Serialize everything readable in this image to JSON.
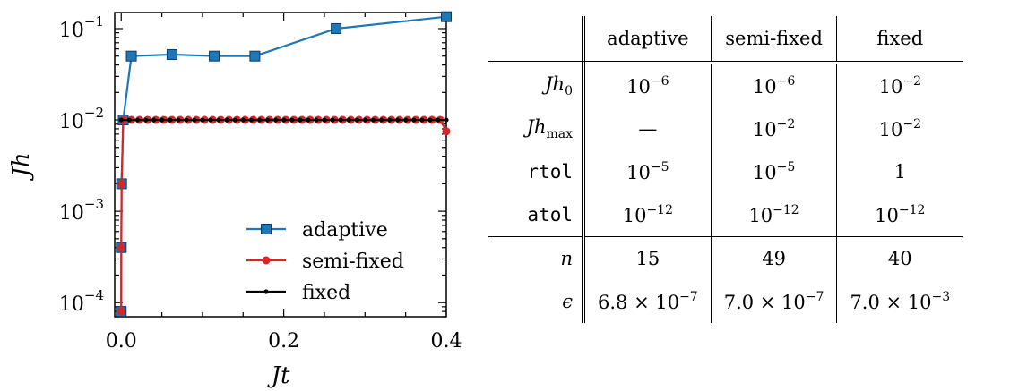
{
  "chart_data": {
    "type": "line",
    "xlabel": "Jt",
    "ylabel": "Jh",
    "xlim": [
      -0.008,
      0.4
    ],
    "ylim": [
      7e-05,
      0.15
    ],
    "yscale": "log",
    "xticks": [
      0.0,
      0.2,
      0.4
    ],
    "xtick_labels": [
      "0.0",
      "0.2",
      "0.4"
    ],
    "yticks": [
      0.0001,
      0.001,
      0.01,
      0.1
    ],
    "ytick_labels": [
      {
        "base": "10",
        "exp": "−4"
      },
      {
        "base": "10",
        "exp": "−3"
      },
      {
        "base": "10",
        "exp": "−2"
      },
      {
        "base": "10",
        "exp": "−1"
      }
    ],
    "legend_position": "lower-right",
    "series": [
      {
        "name": "adaptive",
        "color": "#1f77b4",
        "marker": "square",
        "x": [
          0.0,
          8e-05,
          0.00048,
          0.00248,
          0.01248,
          0.06248,
          0.11448,
          0.16448,
          0.26448,
          0.4
        ],
        "y": [
          8e-05,
          0.0004,
          0.002,
          0.01,
          0.05,
          0.052,
          0.05,
          0.05,
          0.1,
          0.135
        ]
      },
      {
        "name": "semi-fixed",
        "color": "#d62728",
        "marker": "circle",
        "x": [
          0.0,
          8e-05,
          0.00048,
          0.00248,
          0.01248,
          0.02248,
          0.03248,
          0.04248,
          0.05248,
          0.06248,
          0.07248,
          0.08248,
          0.09248,
          0.10248,
          0.11248,
          0.12248,
          0.13248,
          0.14248,
          0.15248,
          0.16248,
          0.17248,
          0.18248,
          0.19248,
          0.20248,
          0.21248,
          0.22248,
          0.23248,
          0.24248,
          0.25248,
          0.26248,
          0.27248,
          0.28248,
          0.29248,
          0.30248,
          0.31248,
          0.32248,
          0.33248,
          0.34248,
          0.35248,
          0.36248,
          0.37248,
          0.38248,
          0.39248,
          0.4
        ],
        "y": [
          8e-05,
          0.0004,
          0.002,
          0.01,
          0.01,
          0.01,
          0.01,
          0.01,
          0.01,
          0.01,
          0.01,
          0.01,
          0.01,
          0.01,
          0.01,
          0.01,
          0.01,
          0.01,
          0.01,
          0.01,
          0.01,
          0.01,
          0.01,
          0.01,
          0.01,
          0.01,
          0.01,
          0.01,
          0.01,
          0.01,
          0.01,
          0.01,
          0.01,
          0.01,
          0.01,
          0.01,
          0.01,
          0.01,
          0.01,
          0.01,
          0.01,
          0.01,
          0.01,
          0.0075
        ]
      },
      {
        "name": "fixed",
        "color": "#000000",
        "marker": "dot",
        "x": [
          0.0,
          0.01,
          0.02,
          0.03,
          0.04,
          0.05,
          0.06,
          0.07,
          0.08,
          0.09,
          0.1,
          0.11,
          0.12,
          0.13,
          0.14,
          0.15,
          0.16,
          0.17,
          0.18,
          0.19,
          0.2,
          0.21,
          0.22,
          0.23,
          0.24,
          0.25,
          0.26,
          0.27,
          0.28,
          0.29,
          0.3,
          0.31,
          0.32,
          0.33,
          0.34,
          0.35,
          0.36,
          0.37,
          0.38,
          0.39,
          0.4
        ],
        "y": [
          0.01,
          0.01,
          0.01,
          0.01,
          0.01,
          0.01,
          0.01,
          0.01,
          0.01,
          0.01,
          0.01,
          0.01,
          0.01,
          0.01,
          0.01,
          0.01,
          0.01,
          0.01,
          0.01,
          0.01,
          0.01,
          0.01,
          0.01,
          0.01,
          0.01,
          0.01,
          0.01,
          0.01,
          0.01,
          0.01,
          0.01,
          0.01,
          0.01,
          0.01,
          0.01,
          0.01,
          0.01,
          0.01,
          0.01,
          0.01,
          0.01
        ]
      }
    ]
  },
  "table": {
    "headers": [
      "adaptive",
      "semi-fixed",
      "fixed"
    ],
    "rows": [
      {
        "label": "Jh",
        "label_sub": "0",
        "cells": [
          {
            "base": "10",
            "exp": "−6"
          },
          {
            "base": "10",
            "exp": "−6"
          },
          {
            "base": "10",
            "exp": "−2"
          }
        ]
      },
      {
        "label": "Jh",
        "label_sub": "max",
        "cells": [
          {
            "text": "—"
          },
          {
            "base": "10",
            "exp": "−2"
          },
          {
            "base": "10",
            "exp": "−2"
          }
        ]
      },
      {
        "label": "rtol",
        "cells": [
          {
            "base": "10",
            "exp": "−5"
          },
          {
            "base": "10",
            "exp": "−5"
          },
          {
            "text": "1"
          }
        ]
      },
      {
        "label": "atol",
        "cells": [
          {
            "base": "10",
            "exp": "−12"
          },
          {
            "base": "10",
            "exp": "−12"
          },
          {
            "base": "10",
            "exp": "−12"
          }
        ]
      },
      {
        "label": "n",
        "cells": [
          {
            "text": "15"
          },
          {
            "text": "49"
          },
          {
            "text": "40"
          }
        ]
      },
      {
        "label": "ϵ",
        "cells": [
          {
            "base": "6.8 × 10",
            "exp": "−7"
          },
          {
            "base": "7.0 × 10",
            "exp": "−7"
          },
          {
            "base": "7.0 × 10",
            "exp": "−3"
          }
        ]
      }
    ]
  }
}
